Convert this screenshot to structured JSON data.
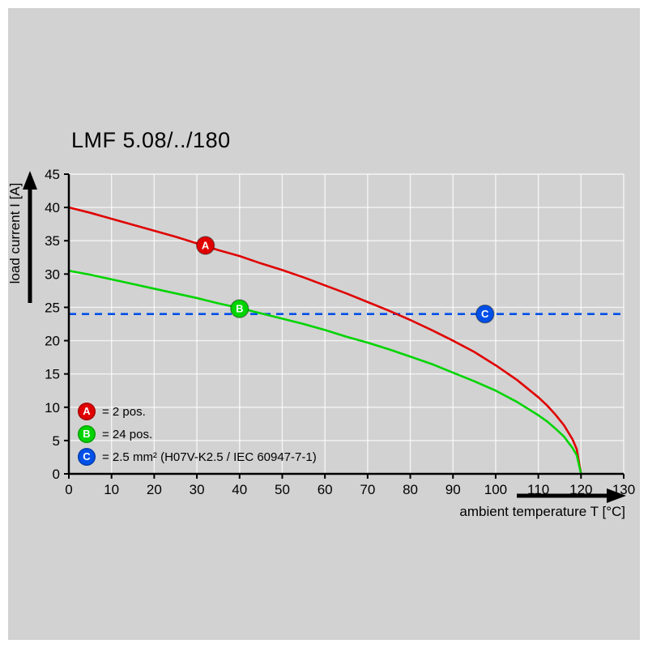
{
  "title": "LMF 5.08/../180",
  "chart_data": {
    "type": "line",
    "title": "LMF 5.08/../180",
    "xlabel": "ambient temperature T [°C]",
    "ylabel": "load current I [A]",
    "xlim": [
      0,
      130
    ],
    "ylim": [
      0,
      45
    ],
    "xticks": [
      0,
      10,
      20,
      30,
      40,
      50,
      60,
      70,
      80,
      90,
      100,
      110,
      120,
      130
    ],
    "yticks": [
      0,
      5,
      10,
      15,
      20,
      25,
      30,
      35,
      40,
      45
    ],
    "grid": true,
    "legend_position": "bottom-left-inside",
    "series": [
      {
        "name": "A",
        "label": "= 2 pos.",
        "color": "#e00000",
        "style": "solid",
        "x": [
          0,
          5,
          10,
          15,
          20,
          25,
          30,
          35,
          40,
          45,
          50,
          55,
          60,
          65,
          70,
          75,
          80,
          85,
          90,
          95,
          100,
          105,
          110,
          112,
          114,
          116,
          118,
          119,
          120
        ],
        "y": [
          40,
          39.2,
          38.3,
          37.4,
          36.5,
          35.6,
          34.6,
          33.6,
          32.7,
          31.6,
          30.6,
          29.5,
          28.3,
          27.1,
          25.8,
          24.5,
          23.1,
          21.6,
          20,
          18.3,
          16.3,
          14.1,
          11.5,
          10.3,
          8.9,
          7.3,
          5.2,
          3.7,
          0
        ],
        "marker": {
          "x": 32,
          "y": 34.3
        }
      },
      {
        "name": "B",
        "label": "= 24 pos.",
        "color": "#00d400",
        "style": "solid",
        "x": [
          0,
          5,
          10,
          15,
          20,
          25,
          30,
          35,
          40,
          45,
          50,
          55,
          60,
          65,
          70,
          75,
          80,
          85,
          90,
          95,
          100,
          105,
          110,
          112,
          114,
          116,
          118,
          119,
          120
        ],
        "y": [
          30.5,
          29.9,
          29.2,
          28.5,
          27.8,
          27.1,
          26.4,
          25.6,
          24.9,
          24.1,
          23.3,
          22.5,
          21.6,
          20.6,
          19.7,
          18.7,
          17.6,
          16.5,
          15.2,
          13.9,
          12.5,
          10.8,
          8.8,
          7.9,
          6.8,
          5.6,
          3.9,
          2.8,
          0
        ],
        "marker": {
          "x": 40,
          "y": 24.8
        }
      },
      {
        "name": "C",
        "label": "= 2.5 mm² (H07V-K2.5 / IEC 60947-7-1)",
        "color": "#0050e8",
        "style": "dashed",
        "y_const": 24,
        "marker": {
          "x": 97.5,
          "y": 24
        }
      }
    ]
  }
}
